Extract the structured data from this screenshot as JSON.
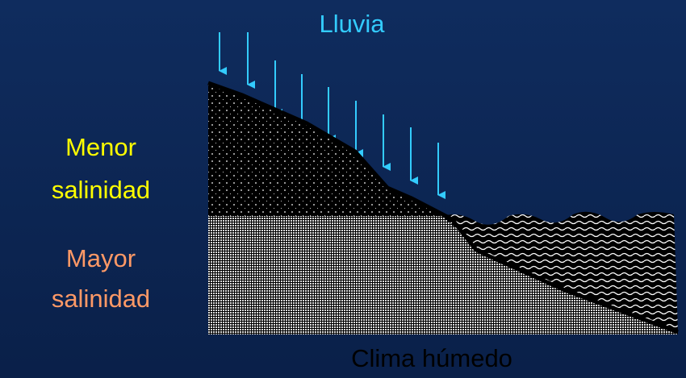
{
  "title": "Lluvia",
  "upper_label": [
    "Menor",
    "salinidad"
  ],
  "lower_label": [
    "Mayor",
    "salinidad"
  ],
  "caption": "Clima húmedo"
}
